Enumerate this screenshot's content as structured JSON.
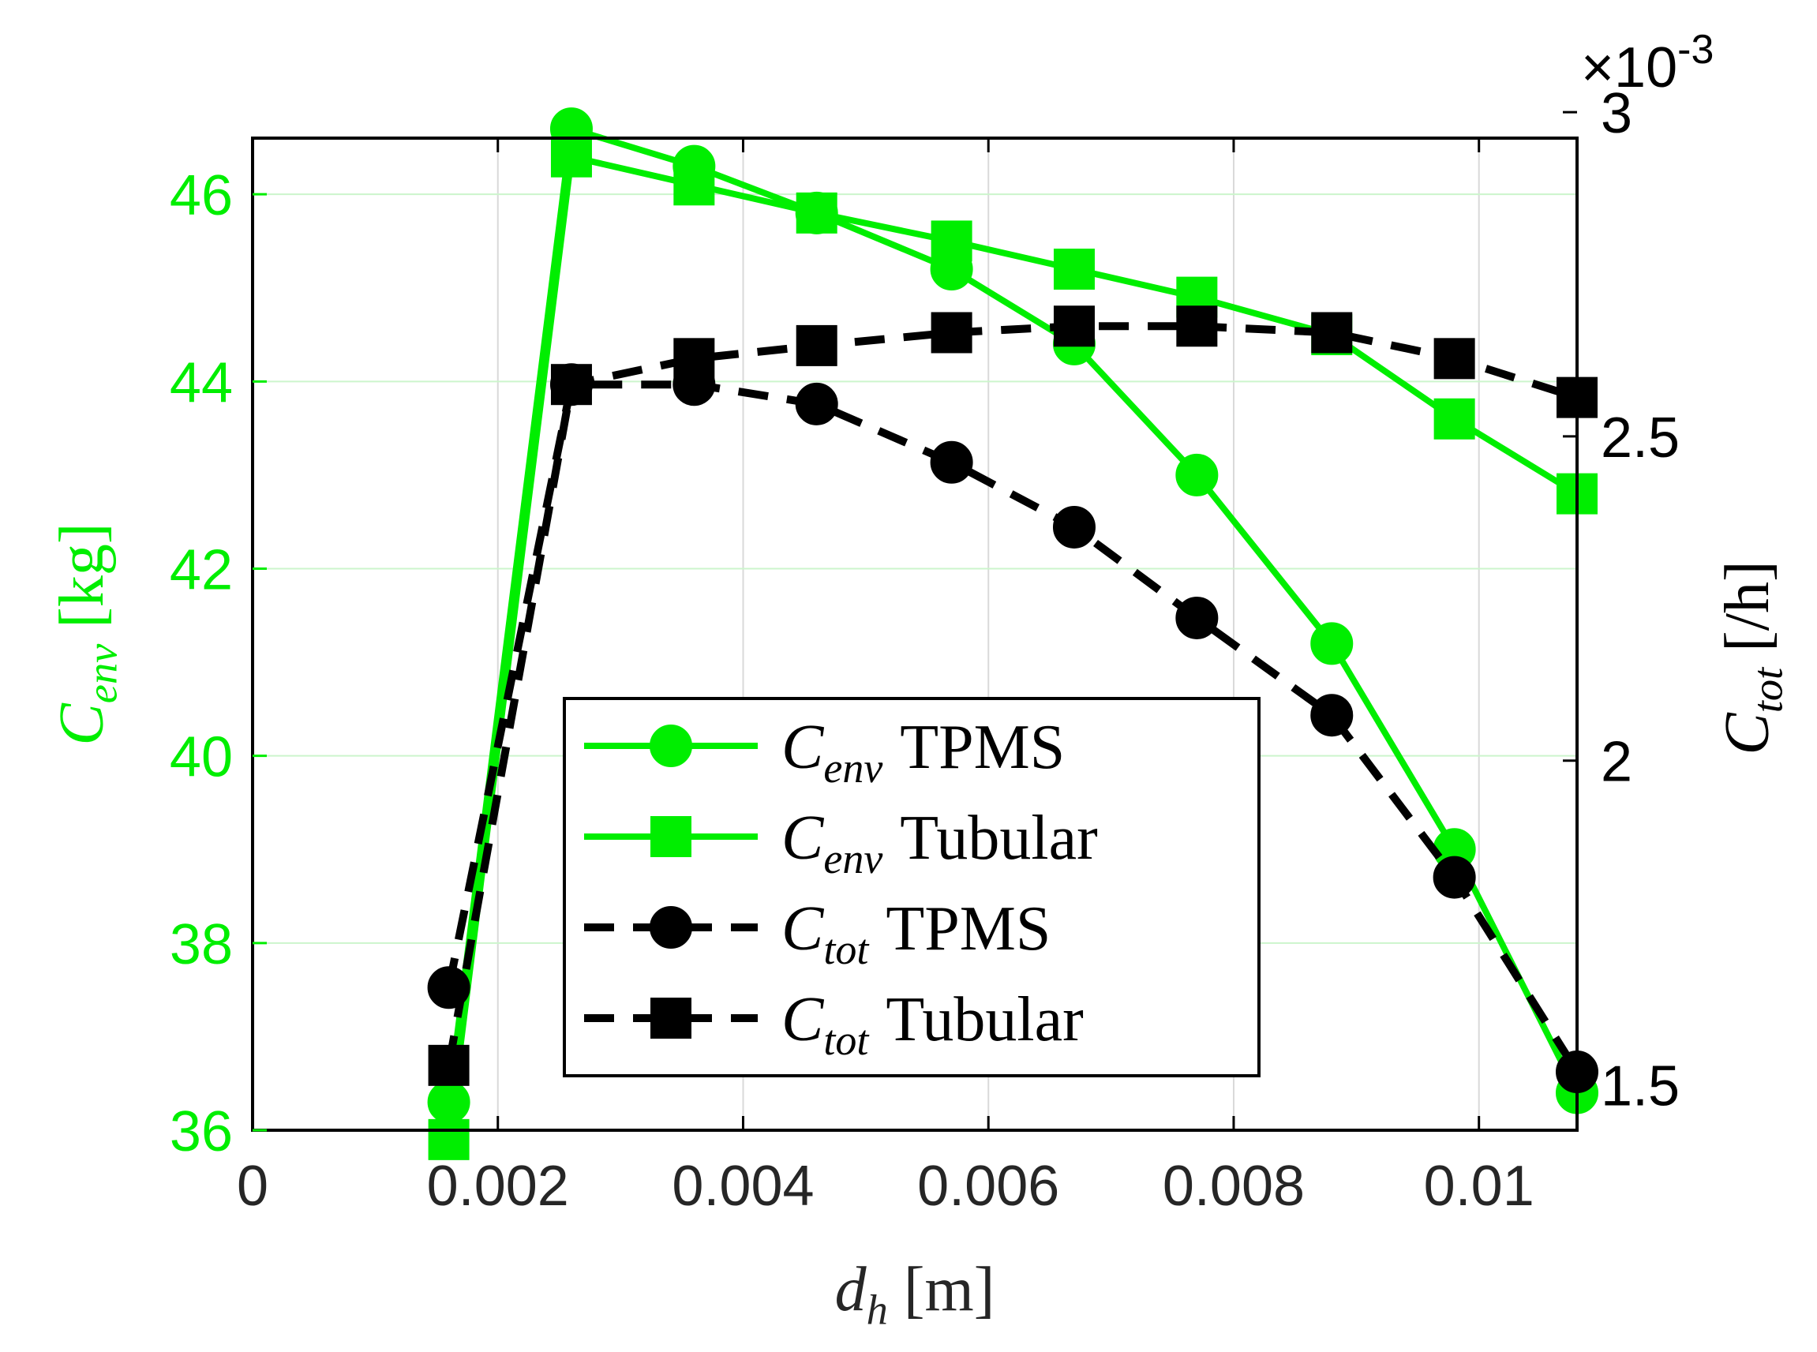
{
  "chart_data": {
    "type": "line",
    "xlabel": {
      "symbol": "d",
      "sub": "h",
      "unit": "[m]"
    },
    "ylabel_left": {
      "symbol": "C",
      "sub": "env",
      "unit": "[kg]"
    },
    "ylabel_right": {
      "symbol": "C",
      "sub": "tot",
      "unit": "[/h]"
    },
    "right_exponent": {
      "prefix": "×10",
      "exp": "-3"
    },
    "xlim": [
      0,
      0.0108
    ],
    "ylim_left": [
      36,
      46.6
    ],
    "ylim_right": [
      1.43,
      2.96
    ],
    "xticks": [
      0,
      0.002,
      0.004,
      0.006,
      0.008,
      0.01
    ],
    "xtick_labels": [
      "0",
      "0.002",
      "0.004",
      "0.006",
      "0.008",
      "0.01"
    ],
    "yticks_left": [
      36,
      38,
      40,
      42,
      44,
      46
    ],
    "ytick_labels_left": [
      "36",
      "38",
      "40",
      "42",
      "44",
      "46"
    ],
    "yticks_right": [
      1.5,
      2,
      2.5,
      3
    ],
    "ytick_labels_right": [
      "1.5",
      "2",
      "2.5",
      "3"
    ],
    "grid": true,
    "legend_position": "lower-center",
    "colors": {
      "env": "#00ee00",
      "tot": "#000000"
    },
    "series": [
      {
        "name": "TPMS",
        "label_symbol": "C",
        "label_sub": "env",
        "axis": "left",
        "marker": "circle",
        "dashed": false,
        "x": [
          0.0016,
          0.0026,
          0.0036,
          0.0046,
          0.0057,
          0.0067,
          0.0077,
          0.0088,
          0.0098,
          0.0108
        ],
        "y": [
          36.3,
          46.7,
          46.3,
          45.8,
          45.2,
          44.4,
          43.0,
          41.2,
          39.0,
          36.4
        ]
      },
      {
        "name": "Tubular",
        "label_symbol": "C",
        "label_sub": "env",
        "axis": "left",
        "marker": "square",
        "dashed": false,
        "x": [
          0.0016,
          0.0026,
          0.0036,
          0.0046,
          0.0057,
          0.0067,
          0.0077,
          0.0088,
          0.0098,
          0.0108
        ],
        "y": [
          35.9,
          46.4,
          46.1,
          45.8,
          45.5,
          45.2,
          44.9,
          44.5,
          43.6,
          42.8
        ]
      },
      {
        "name": "TPMS",
        "label_symbol": "C",
        "label_sub": "tot",
        "axis": "right",
        "marker": "circle",
        "dashed": true,
        "x": [
          0.0016,
          0.0026,
          0.0036,
          0.0046,
          0.0057,
          0.0067,
          0.0077,
          0.0088,
          0.0098,
          0.0108
        ],
        "y": [
          1.65,
          2.58,
          2.58,
          2.55,
          2.46,
          2.36,
          2.22,
          2.07,
          1.82,
          1.52
        ]
      },
      {
        "name": "Tubular",
        "label_symbol": "C",
        "label_sub": "tot",
        "axis": "right",
        "marker": "square",
        "dashed": true,
        "x": [
          0.0016,
          0.0026,
          0.0036,
          0.0046,
          0.0057,
          0.0067,
          0.0077,
          0.0088,
          0.0098,
          0.0108
        ],
        "y": [
          1.53,
          2.58,
          2.62,
          2.64,
          2.66,
          2.67,
          2.67,
          2.66,
          2.62,
          2.56
        ]
      }
    ]
  }
}
